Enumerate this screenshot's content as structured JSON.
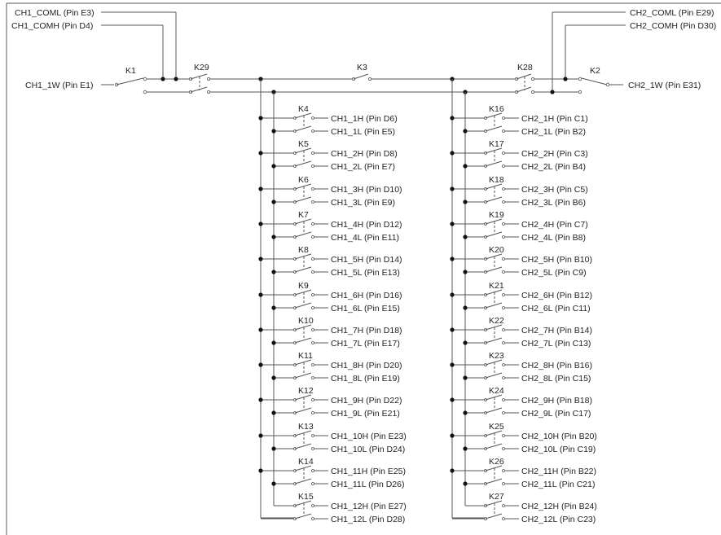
{
  "top_labels": {
    "ch1_coml": "CH1_COML (Pin E3)",
    "ch1_comh": "CH1_COMH (Pin D4)",
    "ch2_coml": "CH2_COML (Pin E29)",
    "ch2_comh": "CH2_COMH (Pin D30)"
  },
  "wire_labels": {
    "ch1_1w": "CH1_1W  (Pin E1)",
    "ch2_1w": "CH2_1W  (Pin E31)"
  },
  "relays": {
    "k1": "K1",
    "k2": "K2",
    "k3": "K3",
    "k28": "K28",
    "k29": "K29"
  },
  "ch1_channels": [
    {
      "relay": "K4",
      "h": "CH1_1H (Pin D6)",
      "l": "CH1_1L (Pin E5)"
    },
    {
      "relay": "K5",
      "h": "CH1_2H (Pin D8)",
      "l": "CH1_2L (Pin E7)"
    },
    {
      "relay": "K6",
      "h": "CH1_3H (Pin D10)",
      "l": "CH1_3L (Pin E9)"
    },
    {
      "relay": "K7",
      "h": "CH1_4H (Pin D12)",
      "l": "CH1_4L (Pin E11)"
    },
    {
      "relay": "K8",
      "h": "CH1_5H (Pin D14)",
      "l": "CH1_5L (Pin E13)"
    },
    {
      "relay": "K9",
      "h": "CH1_6H (Pin D16)",
      "l": "CH1_6L (Pin E15)"
    },
    {
      "relay": "K10",
      "h": "CH1_7H (Pin D18)",
      "l": "CH1_7L (Pin E17)"
    },
    {
      "relay": "K11",
      "h": "CH1_8H (Pin D20)",
      "l": "CH1_8L (Pin E19)"
    },
    {
      "relay": "K12",
      "h": "CH1_9H (Pin D22)",
      "l": "CH1_9L (Pin E21)"
    },
    {
      "relay": "K13",
      "h": "CH1_10H (Pin E23)",
      "l": "CH1_10L (Pin D24)"
    },
    {
      "relay": "K14",
      "h": "CH1_11H (Pin E25)",
      "l": "CH1_11L (Pin D26)"
    },
    {
      "relay": "K15",
      "h": "CH1_12H (Pin E27)",
      "l": "CH1_12L (Pin D28)"
    }
  ],
  "ch2_channels": [
    {
      "relay": "K16",
      "h": "CH2_1H (Pin C1)",
      "l": "CH2_1L (Pin B2)"
    },
    {
      "relay": "K17",
      "h": "CH2_2H (Pin C3)",
      "l": "CH2_2L (Pin B4)"
    },
    {
      "relay": "K18",
      "h": "CH2_3H (Pin C5)",
      "l": "CH2_3L (Pin B6)"
    },
    {
      "relay": "K19",
      "h": "CH2_4H (Pin C7)",
      "l": "CH2_4L (Pin B8)"
    },
    {
      "relay": "K20",
      "h": "CH2_5H (Pin B10)",
      "l": "CH2_5L (Pin C9)"
    },
    {
      "relay": "K21",
      "h": "CH2_6H (Pin B12)",
      "l": "CH2_6L (Pin C11)"
    },
    {
      "relay": "K22",
      "h": "CH2_7H (Pin B14)",
      "l": "CH2_7L (Pin C13)"
    },
    {
      "relay": "K23",
      "h": "CH2_8H (Pin B16)",
      "l": "CH2_8L (Pin C15)"
    },
    {
      "relay": "K24",
      "h": "CH2_9H (Pin B18)",
      "l": "CH2_9L (Pin C17)"
    },
    {
      "relay": "K25",
      "h": "CH2_10H (Pin B20)",
      "l": "CH2_10L (Pin C19)"
    },
    {
      "relay": "K26",
      "h": "CH2_11H (Pin B22)",
      "l": "CH2_11L (Pin C21)"
    },
    {
      "relay": "K27",
      "h": "CH2_12H (Pin B24)",
      "l": "CH2_12L (Pin C23)"
    }
  ]
}
